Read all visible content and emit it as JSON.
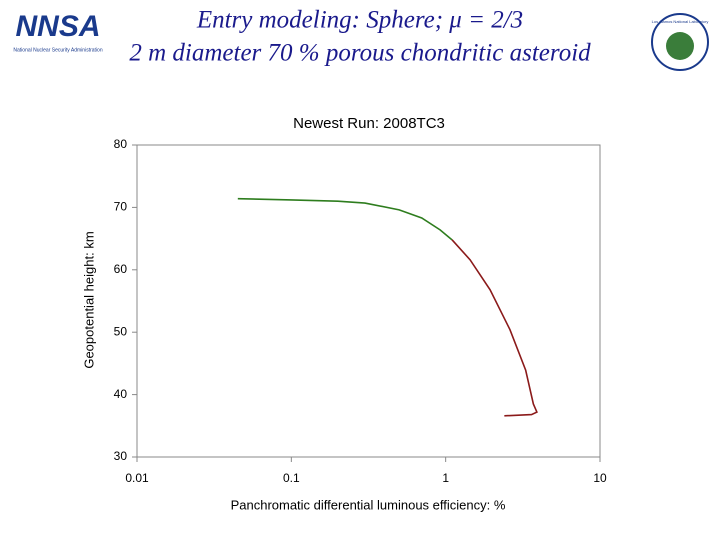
{
  "slide": {
    "title_line1": "Entry modeling: Sphere; μ = 2/3",
    "title_line2": "2 m diameter 70 % porous chondritic asteroid",
    "left_logo": {
      "text": "NNSA",
      "caption": "National Nuclear Security Administration"
    },
    "right_logo": {
      "text": "Los Alamos National Laboratory"
    }
  },
  "chart_data": {
    "type": "line",
    "title": "Newest Run: 2008TC3",
    "x_label": "Panchromatic differential luminous efficiency: %",
    "y_label": "Geopotential height: km",
    "xscale": "log",
    "xlim": [
      0.01,
      10
    ],
    "xticks": [
      0.01,
      0.1,
      1,
      10
    ],
    "ylim": [
      30,
      80
    ],
    "yticks": [
      30,
      40,
      50,
      60,
      70,
      80
    ],
    "grid": false,
    "series": [
      {
        "color": "#2e7d1e",
        "x": [
          0.045,
          0.1,
          0.2,
          0.3,
          0.5,
          0.7,
          0.92,
          1.1
        ],
        "values": [
          71.4,
          71.2,
          71.0,
          70.7,
          69.6,
          68.3,
          66.4,
          64.8
        ]
      },
      {
        "color": "#8b1a1a",
        "x": [
          1.1,
          1.44,
          1.94,
          2.61,
          3.3,
          3.7,
          3.9,
          3.6,
          2.4
        ],
        "values": [
          64.8,
          61.6,
          56.8,
          50.4,
          43.9,
          38.5,
          37.2,
          36.8,
          36.6
        ]
      }
    ]
  }
}
